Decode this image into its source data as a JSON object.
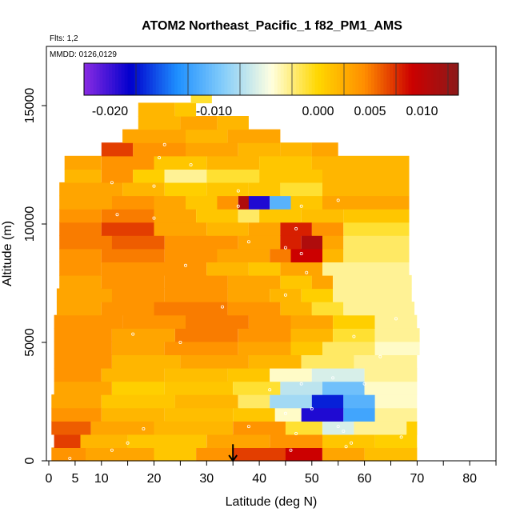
{
  "chart_data": {
    "type": "heatmap",
    "title": "ATOM2 Northeast_Pacific_1 f82_PM1_AMS",
    "subtitle": "Flts: 1,2",
    "inset_label": "MMDD: 0126,0129",
    "xlabel": "Latitude (deg N)",
    "ylabel": "Altitude (m)",
    "xlim": [
      0,
      85
    ],
    "ylim": [
      0,
      17500
    ],
    "x_ticks": [
      0,
      5,
      10,
      15,
      20,
      25,
      30,
      35,
      40,
      45,
      50,
      55,
      60,
      65,
      70,
      75,
      80,
      85
    ],
    "x_tick_labels": [
      "0",
      "5",
      "10",
      "20",
      "30",
      "40",
      "50",
      "60",
      "70",
      "80"
    ],
    "x_tick_label_values": [
      0,
      5,
      10,
      20,
      30,
      40,
      50,
      60,
      70,
      80
    ],
    "y_tick_values": [
      0,
      5000,
      10000,
      15000
    ],
    "y_tick_labels": [
      "0",
      "5000",
      "10000",
      "15000"
    ],
    "colorbar": {
      "min": -0.0225,
      "max": 0.0135,
      "tick_values": [
        -0.02,
        -0.01,
        0.0,
        0.005,
        0.01
      ],
      "tick_labels": [
        "-0.020",
        "-0.010",
        "0.000",
        "0.005",
        "0.010"
      ],
      "major_lines": [
        -0.0175,
        -0.0125,
        -0.0075,
        -0.0025,
        0.0025,
        0.0075,
        0.0125
      ],
      "colors": [
        "#8a2be2",
        "#0000cd",
        "#1e90ff",
        "#87cefa",
        "#ffffe0",
        "#ffd700",
        "#ff8c00",
        "#cc0000",
        "#8b1a1a"
      ]
    },
    "marker": {
      "x": 35,
      "y_from": 700,
      "y_to": 0,
      "symbol": "down-arrow"
    },
    "band_height_m": 560,
    "rows": [
      [
        {
          "x0": 0.5,
          "x1": 7,
          "v": 0.004
        },
        {
          "x0": 7,
          "x1": 20,
          "v": 0.003
        },
        {
          "x0": 20,
          "x1": 28,
          "v": 0.001
        },
        {
          "x0": 28,
          "x1": 35,
          "v": 0.004
        },
        {
          "x0": 35,
          "x1": 45,
          "v": 0.007
        },
        {
          "x0": 45,
          "x1": 52,
          "v": 0.009
        },
        {
          "x0": 52,
          "x1": 60,
          "v": 0.003
        },
        {
          "x0": 60,
          "x1": 70,
          "v": 0.0015
        }
      ],
      [
        {
          "x0": 1,
          "x1": 6,
          "v": 0.007
        },
        {
          "x0": 6,
          "x1": 15,
          "v": 0.002
        },
        {
          "x0": 15,
          "x1": 30,
          "v": 0.001
        },
        {
          "x0": 30,
          "x1": 42,
          "v": 0.003
        },
        {
          "x0": 42,
          "x1": 52,
          "v": 0.004
        },
        {
          "x0": 52,
          "x1": 62,
          "v": 0.001
        },
        {
          "x0": 62,
          "x1": 70,
          "v": 0.0005
        }
      ],
      [
        {
          "x0": 0.5,
          "x1": 8,
          "v": 0.006
        },
        {
          "x0": 8,
          "x1": 20,
          "v": 0.003
        },
        {
          "x0": 20,
          "x1": 35,
          "v": 0.002
        },
        {
          "x0": 35,
          "x1": 45,
          "v": 0.004
        },
        {
          "x0": 45,
          "x1": 52,
          "v": -0.001
        },
        {
          "x0": 52,
          "x1": 58,
          "v": -0.006
        },
        {
          "x0": 58,
          "x1": 68,
          "v": -0.003
        },
        {
          "x0": 68,
          "x1": 70,
          "v": 0.0005
        }
      ],
      [
        {
          "x0": 0.5,
          "x1": 10,
          "v": 0.004
        },
        {
          "x0": 10,
          "x1": 22,
          "v": 0.002
        },
        {
          "x0": 22,
          "x1": 35,
          "v": 0.0015
        },
        {
          "x0": 35,
          "x1": 43,
          "v": 0.001
        },
        {
          "x0": 43,
          "x1": 48,
          "v": -0.004
        },
        {
          "x0": 48,
          "x1": 56,
          "v": -0.019
        },
        {
          "x0": 56,
          "x1": 62,
          "v": -0.012
        },
        {
          "x0": 62,
          "x1": 70,
          "v": -0.003
        }
      ],
      [
        {
          "x0": 0.5,
          "x1": 10,
          "v": 0.003
        },
        {
          "x0": 10,
          "x1": 24,
          "v": 0.001
        },
        {
          "x0": 24,
          "x1": 36,
          "v": 0.002
        },
        {
          "x0": 36,
          "x1": 42,
          "v": -0.002
        },
        {
          "x0": 42,
          "x1": 50,
          "v": -0.008
        },
        {
          "x0": 50,
          "x1": 56,
          "v": -0.017
        },
        {
          "x0": 56,
          "x1": 62,
          "v": -0.011
        },
        {
          "x0": 62,
          "x1": 70,
          "v": -0.004
        }
      ],
      [
        {
          "x0": 1,
          "x1": 12,
          "v": 0.003
        },
        {
          "x0": 12,
          "x1": 22,
          "v": 0.0005
        },
        {
          "x0": 22,
          "x1": 35,
          "v": 0.001
        },
        {
          "x0": 35,
          "x1": 44,
          "v": -0.001
        },
        {
          "x0": 44,
          "x1": 52,
          "v": -0.007
        },
        {
          "x0": 52,
          "x1": 60,
          "v": -0.01
        },
        {
          "x0": 60,
          "x1": 70,
          "v": -0.004
        }
      ],
      [
        {
          "x0": 1,
          "x1": 10,
          "v": 0.004
        },
        {
          "x0": 10,
          "x1": 22,
          "v": 0.002
        },
        {
          "x0": 22,
          "x1": 34,
          "v": 0.0015
        },
        {
          "x0": 34,
          "x1": 42,
          "v": 0.001
        },
        {
          "x0": 42,
          "x1": 50,
          "v": -0.004
        },
        {
          "x0": 50,
          "x1": 60,
          "v": -0.006
        },
        {
          "x0": 60,
          "x1": 70,
          "v": -0.003
        }
      ],
      [
        {
          "x0": 1,
          "x1": 12,
          "v": 0.004
        },
        {
          "x0": 12,
          "x1": 25,
          "v": 0.002
        },
        {
          "x0": 25,
          "x1": 38,
          "v": 0.003
        },
        {
          "x0": 38,
          "x1": 48,
          "v": 0.002
        },
        {
          "x0": 48,
          "x1": 58,
          "v": -0.002
        },
        {
          "x0": 58,
          "x1": 70,
          "v": -0.003
        }
      ],
      [
        {
          "x0": 1,
          "x1": 12,
          "v": 0.004
        },
        {
          "x0": 12,
          "x1": 22,
          "v": 0.003
        },
        {
          "x0": 22,
          "x1": 36,
          "v": 0.004
        },
        {
          "x0": 36,
          "x1": 46,
          "v": 0.003
        },
        {
          "x0": 46,
          "x1": 52,
          "v": 0.001
        },
        {
          "x0": 52,
          "x1": 62,
          "v": -0.002
        },
        {
          "x0": 62,
          "x1": 70.5,
          "v": -0.004
        }
      ],
      [
        {
          "x0": 1,
          "x1": 12,
          "v": 0.004
        },
        {
          "x0": 12,
          "x1": 24,
          "v": 0.003
        },
        {
          "x0": 24,
          "x1": 36,
          "v": 0.005
        },
        {
          "x0": 36,
          "x1": 46,
          "v": 0.004
        },
        {
          "x0": 46,
          "x1": 54,
          "v": 0.002
        },
        {
          "x0": 54,
          "x1": 62,
          "v": -0.001
        },
        {
          "x0": 62,
          "x1": 70.5,
          "v": -0.003
        }
      ],
      [
        {
          "x0": 1,
          "x1": 14,
          "v": 0.004
        },
        {
          "x0": 14,
          "x1": 26,
          "v": 0.004
        },
        {
          "x0": 26,
          "x1": 38,
          "v": 0.005
        },
        {
          "x0": 38,
          "x1": 46,
          "v": 0.004
        },
        {
          "x0": 46,
          "x1": 54,
          "v": 0.003
        },
        {
          "x0": 54,
          "x1": 62,
          "v": 0.0005
        },
        {
          "x0": 62,
          "x1": 70,
          "v": -0.003
        }
      ],
      [
        {
          "x0": 1.5,
          "x1": 10,
          "v": 0.003
        },
        {
          "x0": 10,
          "x1": 20,
          "v": 0.004
        },
        {
          "x0": 20,
          "x1": 34,
          "v": 0.005
        },
        {
          "x0": 34,
          "x1": 44,
          "v": 0.004
        },
        {
          "x0": 44,
          "x1": 50,
          "v": 0.002
        },
        {
          "x0": 50,
          "x1": 56,
          "v": -0.001
        },
        {
          "x0": 56,
          "x1": 69.5,
          "v": -0.003
        }
      ],
      [
        {
          "x0": 1.5,
          "x1": 12,
          "v": 0.003
        },
        {
          "x0": 12,
          "x1": 22,
          "v": 0.004
        },
        {
          "x0": 22,
          "x1": 34,
          "v": 0.004
        },
        {
          "x0": 34,
          "x1": 42,
          "v": 0.003
        },
        {
          "x0": 42,
          "x1": 48,
          "v": 0.002
        },
        {
          "x0": 48,
          "x1": 54,
          "v": 0.0005
        },
        {
          "x0": 54,
          "x1": 69,
          "v": -0.003
        }
      ],
      [
        {
          "x0": 2,
          "x1": 10,
          "v": 0.003
        },
        {
          "x0": 10,
          "x1": 22,
          "v": 0.004
        },
        {
          "x0": 22,
          "x1": 34,
          "v": 0.004
        },
        {
          "x0": 34,
          "x1": 44,
          "v": 0.003
        },
        {
          "x0": 44,
          "x1": 50,
          "v": 0.001
        },
        {
          "x0": 50,
          "x1": 54,
          "v": 0.003
        },
        {
          "x0": 54,
          "x1": 69,
          "v": -0.003
        }
      ],
      [
        {
          "x0": 2,
          "x1": 10,
          "v": 0.004
        },
        {
          "x0": 10,
          "x1": 20,
          "v": 0.004
        },
        {
          "x0": 20,
          "x1": 30,
          "v": 0.004
        },
        {
          "x0": 30,
          "x1": 38,
          "v": 0.002
        },
        {
          "x0": 38,
          "x1": 44,
          "v": 0.001
        },
        {
          "x0": 44,
          "x1": 52,
          "v": 0.003
        },
        {
          "x0": 52,
          "x1": 68.5,
          "v": -0.003
        }
      ],
      [
        {
          "x0": 2,
          "x1": 10,
          "v": 0.004
        },
        {
          "x0": 10,
          "x1": 22,
          "v": 0.005
        },
        {
          "x0": 22,
          "x1": 32,
          "v": 0.004
        },
        {
          "x0": 32,
          "x1": 42,
          "v": 0.003
        },
        {
          "x0": 42,
          "x1": 46,
          "v": 0.005
        },
        {
          "x0": 46,
          "x1": 52,
          "v": 0.009
        },
        {
          "x0": 52,
          "x1": 56,
          "v": 0.002
        },
        {
          "x0": 56,
          "x1": 68.5,
          "v": -0.002
        }
      ],
      [
        {
          "x0": 2,
          "x1": 12,
          "v": 0.005
        },
        {
          "x0": 12,
          "x1": 22,
          "v": 0.006
        },
        {
          "x0": 22,
          "x1": 36,
          "v": 0.004
        },
        {
          "x0": 36,
          "x1": 44,
          "v": 0.003
        },
        {
          "x0": 44,
          "x1": 48,
          "v": 0.008
        },
        {
          "x0": 48,
          "x1": 52,
          "v": 0.011
        },
        {
          "x0": 52,
          "x1": 56,
          "v": 0.003
        },
        {
          "x0": 56,
          "x1": 68.5,
          "v": -0.002
        }
      ],
      [
        {
          "x0": 2,
          "x1": 10,
          "v": 0.005
        },
        {
          "x0": 10,
          "x1": 20,
          "v": 0.007
        },
        {
          "x0": 20,
          "x1": 30,
          "v": 0.003
        },
        {
          "x0": 30,
          "x1": 38,
          "v": 0.002
        },
        {
          "x0": 38,
          "x1": 44,
          "v": 0.003
        },
        {
          "x0": 44,
          "x1": 50,
          "v": 0.008
        },
        {
          "x0": 50,
          "x1": 56,
          "v": 0.004
        },
        {
          "x0": 56,
          "x1": 68.5,
          "v": -0.001
        }
      ],
      [
        {
          "x0": 2,
          "x1": 10,
          "v": 0.004
        },
        {
          "x0": 10,
          "x1": 20,
          "v": 0.005
        },
        {
          "x0": 20,
          "x1": 28,
          "v": 0.003
        },
        {
          "x0": 28,
          "x1": 36,
          "v": 0.001
        },
        {
          "x0": 36,
          "x1": 40,
          "v": -0.002
        },
        {
          "x0": 40,
          "x1": 48,
          "v": 0.001
        },
        {
          "x0": 48,
          "x1": 56,
          "v": 0.0015
        },
        {
          "x0": 56,
          "x1": 68.5,
          "v": 0.001
        }
      ],
      [
        {
          "x0": 2,
          "x1": 12,
          "v": 0.003
        },
        {
          "x0": 12,
          "x1": 20,
          "v": 0.004
        },
        {
          "x0": 20,
          "x1": 26,
          "v": 0.003
        },
        {
          "x0": 26,
          "x1": 32,
          "v": 0.001
        },
        {
          "x0": 32,
          "x1": 36,
          "v": 0.004
        },
        {
          "x0": 36,
          "x1": 38,
          "v": 0.011
        },
        {
          "x0": 38,
          "x1": 42,
          "v": -0.019
        },
        {
          "x0": 42,
          "x1": 46,
          "v": -0.011
        },
        {
          "x0": 46,
          "x1": 52,
          "v": 0.001
        },
        {
          "x0": 52,
          "x1": 68.5,
          "v": 0.003
        }
      ],
      [
        {
          "x0": 2,
          "x1": 14,
          "v": 0.003
        },
        {
          "x0": 14,
          "x1": 22,
          "v": 0.002
        },
        {
          "x0": 22,
          "x1": 30,
          "v": 0.0005
        },
        {
          "x0": 30,
          "x1": 38,
          "v": 0.001
        },
        {
          "x0": 38,
          "x1": 44,
          "v": 0.001
        },
        {
          "x0": 44,
          "x1": 52,
          "v": -0.001
        },
        {
          "x0": 52,
          "x1": 68.5,
          "v": 0.002
        }
      ],
      [
        {
          "x0": 3,
          "x1": 10,
          "v": 0.002
        },
        {
          "x0": 10,
          "x1": 16,
          "v": 0.004
        },
        {
          "x0": 16,
          "x1": 22,
          "v": 0.0005
        },
        {
          "x0": 22,
          "x1": 30,
          "v": -0.003
        },
        {
          "x0": 30,
          "x1": 40,
          "v": -0.001
        },
        {
          "x0": 40,
          "x1": 52,
          "v": 0.001
        },
        {
          "x0": 52,
          "x1": 68.5,
          "v": 0.002
        }
      ],
      [
        {
          "x0": 3,
          "x1": 10,
          "v": 0.003
        },
        {
          "x0": 10,
          "x1": 20,
          "v": 0.004
        },
        {
          "x0": 20,
          "x1": 30,
          "v": 0.001
        },
        {
          "x0": 30,
          "x1": 40,
          "v": 0.002
        },
        {
          "x0": 40,
          "x1": 50,
          "v": 0.001
        },
        {
          "x0": 50,
          "x1": 68.5,
          "v": 0.002
        }
      ],
      [
        {
          "x0": 10,
          "x1": 16,
          "v": 0.007
        },
        {
          "x0": 16,
          "x1": 26,
          "v": 0.004
        },
        {
          "x0": 26,
          "x1": 36,
          "v": 0.003
        },
        {
          "x0": 36,
          "x1": 44,
          "v": 0.002
        },
        {
          "x0": 44,
          "x1": 50,
          "v": 0.002
        },
        {
          "x0": 50,
          "x1": 55,
          "v": 0.003
        }
      ],
      [
        {
          "x0": 14,
          "x1": 26,
          "v": 0.003
        },
        {
          "x0": 26,
          "x1": 34,
          "v": 0.002
        },
        {
          "x0": 34,
          "x1": 44,
          "v": 0.003
        }
      ],
      [
        {
          "x0": 17,
          "x1": 25,
          "v": 0.002
        },
        {
          "x0": 25,
          "x1": 32,
          "v": 0.003
        },
        {
          "x0": 32,
          "x1": 38,
          "v": 0.002
        }
      ],
      [
        {
          "x0": 17,
          "x1": 24,
          "v": 0.002
        },
        {
          "x0": 24,
          "x1": 28,
          "v": 0.001
        }
      ],
      [
        {
          "x0": 27,
          "x1": 31,
          "v": -0.001
        }
      ]
    ],
    "points": [
      [
        46,
        0.9
      ],
      [
        47,
        2.3
      ],
      [
        55,
        2.9
      ],
      [
        56,
        2.5
      ],
      [
        56.5,
        1.2
      ],
      [
        57.5,
        1.5
      ],
      [
        67,
        2.0
      ],
      [
        4,
        0.2
      ],
      [
        12,
        0.9
      ],
      [
        15,
        1.5
      ],
      [
        18,
        2.7
      ],
      [
        38,
        2.9
      ],
      [
        45,
        4.0
      ],
      [
        50,
        4.4
      ],
      [
        42,
        6.0
      ],
      [
        48,
        6.5
      ],
      [
        54,
        7.0
      ],
      [
        60,
        6.5
      ],
      [
        63,
        8.8
      ],
      [
        58,
        10.5
      ],
      [
        66,
        12.0
      ],
      [
        16,
        10.7
      ],
      [
        25,
        10.0
      ],
      [
        33,
        13.0
      ],
      [
        45,
        14.0
      ],
      [
        49,
        15.9
      ],
      [
        26,
        16.5
      ],
      [
        13,
        20.8
      ],
      [
        20,
        20.5
      ],
      [
        36,
        21.5
      ],
      [
        48,
        17.5
      ],
      [
        45,
        18.0
      ],
      [
        38,
        18.5
      ],
      [
        47,
        19.6
      ],
      [
        48,
        21.5
      ],
      [
        55,
        22.0
      ],
      [
        12,
        23.5
      ],
      [
        20,
        23.2
      ],
      [
        36,
        22.8
      ],
      [
        27,
        25.0
      ],
      [
        21,
        25.6
      ],
      [
        22,
        26.7
      ],
      [
        6,
        28.0
      ]
    ]
  }
}
